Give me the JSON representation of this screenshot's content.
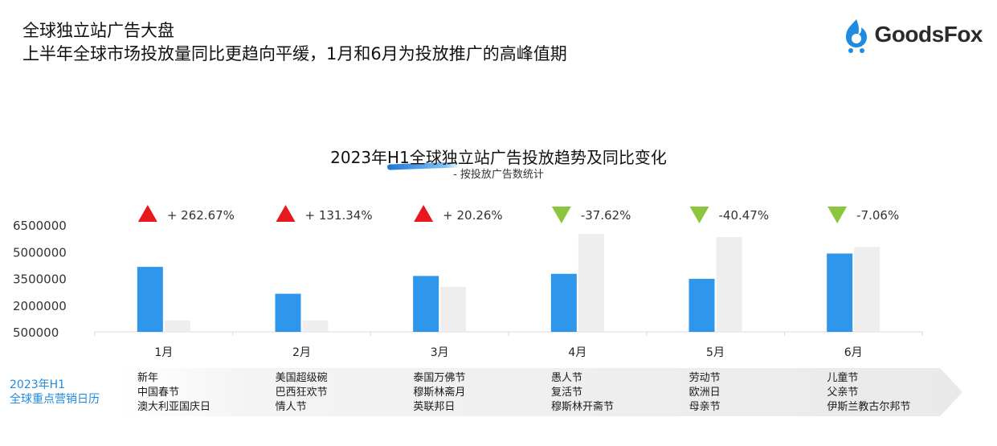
{
  "header": {
    "title": "全球独立站广告大盘",
    "subtitle": "上半年全球市场投放量同比更趋向平缓，1月和6月为投放推广的高峰值期"
  },
  "logo": {
    "text": "GoodsFox",
    "icon": "fox-cart-icon",
    "color": "#1e8be0"
  },
  "chart_data": {
    "type": "bar",
    "title": "2023年H1全球独立站广告投放趋势及同比变化",
    "subtitle": "- 按投放广告数统计",
    "categories": [
      "1月",
      "2月",
      "3月",
      "4月",
      "5月",
      "6月"
    ],
    "yticks": [
      "6500000",
      "5000000",
      "3500000",
      "2000000",
      "500000"
    ],
    "ylim": [
      500000,
      6500000
    ],
    "series": [
      {
        "color": "#2e97ec",
        "values": [
          4150000,
          2640000,
          3640000,
          3760000,
          3480000,
          4900000
        ]
      },
      {
        "color": "#eeeeee",
        "values": [
          1140000,
          1140000,
          3030000,
          6000000,
          5820000,
          5270000
        ]
      }
    ],
    "changes": [
      {
        "label": "+ 262.67%",
        "direction": "up"
      },
      {
        "label": "+ 131.34%",
        "direction": "up"
      },
      {
        "label": "+ 20.26%",
        "direction": "up"
      },
      {
        "label": "-37.62%",
        "direction": "down"
      },
      {
        "label": "-40.47%",
        "direction": "down"
      },
      {
        "label": "-7.06%",
        "direction": "down"
      }
    ],
    "grid": false
  },
  "colors": {
    "up": "#e8191e",
    "down": "#8cc63f",
    "bar_primary": "#2e97ec",
    "bar_secondary": "#eeeeee",
    "accent": "#1e8be0"
  },
  "calendar": {
    "label_line1": "2023年H1",
    "label_line2": "全球重点营销日历",
    "months": [
      [
        "新年",
        "中国春节",
        "澳大利亚国庆日"
      ],
      [
        "美国超级碗",
        "巴西狂欢节",
        "情人节"
      ],
      [
        "泰国万佛节",
        "穆斯林斋月",
        "英联邦日"
      ],
      [
        "愚人节",
        "复活节",
        "穆斯林开斋节"
      ],
      [
        "劳动节",
        "欧洲日",
        "母亲节"
      ],
      [
        "儿童节",
        "父亲节",
        "伊斯兰教古尔邦节"
      ]
    ]
  }
}
